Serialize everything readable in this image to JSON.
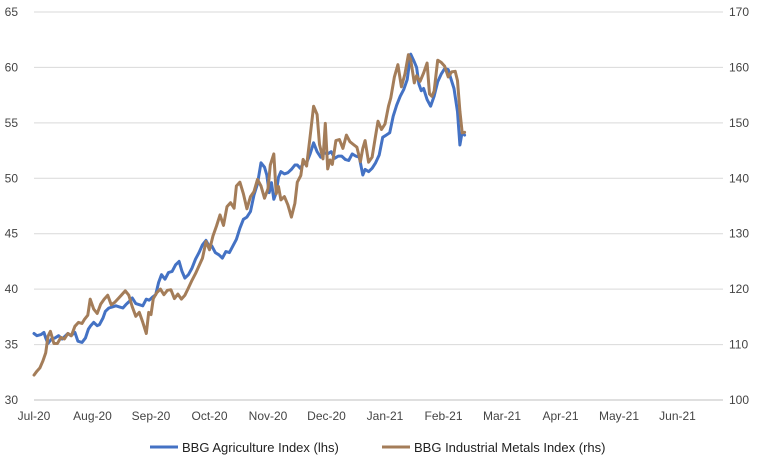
{
  "chart_data": {
    "type": "line",
    "x_labels": [
      "Jul-20",
      "Aug-20",
      "Sep-20",
      "Oct-20",
      "Nov-20",
      "Dec-20",
      "Jan-21",
      "Feb-21",
      "Mar-21",
      "Apr-21",
      "May-21",
      "Jun-21"
    ],
    "y_left": {
      "lim": [
        30,
        65
      ],
      "ticks": [
        30,
        35,
        40,
        45,
        50,
        55,
        60,
        65
      ]
    },
    "y_right": {
      "lim": [
        100,
        170
      ],
      "ticks": [
        100,
        110,
        120,
        130,
        140,
        150,
        160,
        170
      ]
    },
    "grid": true,
    "legend_position": "bottom",
    "series": [
      {
        "name": "BBG Agriculture Index (lhs)",
        "axis": "left",
        "color": "#4472c4",
        "points": [
          [
            0,
            36.0
          ],
          [
            0.05,
            35.8
          ],
          [
            0.12,
            35.9
          ],
          [
            0.17,
            36.1
          ],
          [
            0.2,
            35.6
          ],
          [
            0.24,
            35.1
          ],
          [
            0.3,
            35.5
          ],
          [
            0.36,
            35.6
          ],
          [
            0.42,
            35.8
          ],
          [
            0.48,
            35.5
          ],
          [
            0.52,
            35.7
          ],
          [
            0.58,
            36.0
          ],
          [
            0.63,
            35.8
          ],
          [
            0.7,
            36.1
          ],
          [
            0.75,
            35.3
          ],
          [
            0.82,
            35.2
          ],
          [
            0.88,
            35.6
          ],
          [
            0.93,
            36.4
          ],
          [
            0.97,
            36.7
          ],
          [
            1.02,
            37.0
          ],
          [
            1.08,
            36.7
          ],
          [
            1.12,
            36.8
          ],
          [
            1.18,
            37.4
          ],
          [
            1.22,
            38.0
          ],
          [
            1.28,
            38.3
          ],
          [
            1.34,
            38.4
          ],
          [
            1.4,
            38.5
          ],
          [
            1.46,
            38.4
          ],
          [
            1.52,
            38.3
          ],
          [
            1.57,
            38.6
          ],
          [
            1.63,
            38.9
          ],
          [
            1.68,
            39.2
          ],
          [
            1.74,
            38.7
          ],
          [
            1.8,
            38.6
          ],
          [
            1.86,
            38.5
          ],
          [
            1.92,
            39.1
          ],
          [
            1.97,
            39.0
          ],
          [
            2.03,
            39.3
          ],
          [
            2.08,
            39.5
          ],
          [
            2.13,
            40.6
          ],
          [
            2.18,
            41.3
          ],
          [
            2.24,
            40.9
          ],
          [
            2.3,
            41.5
          ],
          [
            2.36,
            41.6
          ],
          [
            2.42,
            42.2
          ],
          [
            2.48,
            42.5
          ],
          [
            2.53,
            41.6
          ],
          [
            2.58,
            41.0
          ],
          [
            2.64,
            41.3
          ],
          [
            2.7,
            41.9
          ],
          [
            2.76,
            42.7
          ],
          [
            2.82,
            43.3
          ],
          [
            2.88,
            44.0
          ],
          [
            2.94,
            44.4
          ],
          [
            3.0,
            43.8
          ],
          [
            3.04,
            43.9
          ],
          [
            3.1,
            43.3
          ],
          [
            3.16,
            43.1
          ],
          [
            3.22,
            42.8
          ],
          [
            3.28,
            43.4
          ],
          [
            3.34,
            43.3
          ],
          [
            3.4,
            43.9
          ],
          [
            3.46,
            44.5
          ],
          [
            3.52,
            45.5
          ],
          [
            3.58,
            46.3
          ],
          [
            3.64,
            46.5
          ],
          [
            3.7,
            47.0
          ],
          [
            3.76,
            48.5
          ],
          [
            3.82,
            49.5
          ],
          [
            3.88,
            51.4
          ],
          [
            3.94,
            51.0
          ],
          [
            3.98,
            50.3
          ],
          [
            4.02,
            48.7
          ],
          [
            4.06,
            49.6
          ],
          [
            4.1,
            48.1
          ],
          [
            4.14,
            48.7
          ],
          [
            4.18,
            50.1
          ],
          [
            4.22,
            50.6
          ],
          [
            4.28,
            50.4
          ],
          [
            4.34,
            50.5
          ],
          [
            4.4,
            50.8
          ],
          [
            4.46,
            51.2
          ],
          [
            4.5,
            51.2
          ],
          [
            4.55,
            50.9
          ],
          [
            4.6,
            51.3
          ],
          [
            4.66,
            51.4
          ],
          [
            4.72,
            52.2
          ],
          [
            4.78,
            53.2
          ],
          [
            4.84,
            52.4
          ],
          [
            4.9,
            51.9
          ],
          [
            4.96,
            52.3
          ],
          [
            5.02,
            52.2
          ],
          [
            5.08,
            52.4
          ],
          [
            5.14,
            51.8
          ],
          [
            5.2,
            52.0
          ],
          [
            5.26,
            52.0
          ],
          [
            5.32,
            51.7
          ],
          [
            5.38,
            51.6
          ],
          [
            5.44,
            52.2
          ],
          [
            5.5,
            52.0
          ],
          [
            5.56,
            51.9
          ],
          [
            5.62,
            50.3
          ],
          [
            5.66,
            50.8
          ],
          [
            5.72,
            50.6
          ],
          [
            5.78,
            50.9
          ],
          [
            5.84,
            51.4
          ],
          [
            5.9,
            52.1
          ],
          [
            5.96,
            53.7
          ],
          [
            6.02,
            53.9
          ],
          [
            6.08,
            54.1
          ],
          [
            6.14,
            55.6
          ],
          [
            6.2,
            56.6
          ],
          [
            6.26,
            57.4
          ],
          [
            6.32,
            58.0
          ],
          [
            6.38,
            58.9
          ],
          [
            6.44,
            61.2
          ],
          [
            6.5,
            60.5
          ],
          [
            6.54,
            60.0
          ],
          [
            6.58,
            58.5
          ],
          [
            6.62,
            57.9
          ],
          [
            6.66,
            58.1
          ],
          [
            6.72,
            57.1
          ],
          [
            6.78,
            56.5
          ],
          [
            6.84,
            57.4
          ],
          [
            6.9,
            58.7
          ],
          [
            6.96,
            59.4
          ],
          [
            7.02,
            59.9
          ],
          [
            7.08,
            59.8
          ],
          [
            7.12,
            59.1
          ],
          [
            7.18,
            58.1
          ],
          [
            7.24,
            56.0
          ],
          [
            7.28,
            53.0
          ],
          [
            7.32,
            54.2
          ],
          [
            7.36,
            53.9
          ]
        ]
      },
      {
        "name": "BBG Industrial Metals Index (rhs)",
        "axis": "right",
        "color": "#a47d59",
        "points": [
          [
            0,
            104.5
          ],
          [
            0.05,
            105.2
          ],
          [
            0.1,
            105.8
          ],
          [
            0.15,
            107.0
          ],
          [
            0.2,
            108.5
          ],
          [
            0.24,
            111.5
          ],
          [
            0.28,
            112.4
          ],
          [
            0.34,
            110.2
          ],
          [
            0.4,
            110.2
          ],
          [
            0.46,
            111.3
          ],
          [
            0.52,
            111.0
          ],
          [
            0.58,
            112.0
          ],
          [
            0.64,
            111.6
          ],
          [
            0.7,
            113.3
          ],
          [
            0.76,
            114.0
          ],
          [
            0.82,
            113.8
          ],
          [
            0.86,
            114.5
          ],
          [
            0.92,
            115.3
          ],
          [
            0.96,
            118.2
          ],
          [
            1.02,
            116.4
          ],
          [
            1.08,
            115.6
          ],
          [
            1.14,
            117.3
          ],
          [
            1.2,
            118.2
          ],
          [
            1.26,
            118.9
          ],
          [
            1.32,
            117.2
          ],
          [
            1.38,
            117.6
          ],
          [
            1.44,
            118.3
          ],
          [
            1.5,
            119.0
          ],
          [
            1.56,
            119.7
          ],
          [
            1.62,
            118.9
          ],
          [
            1.68,
            116.8
          ],
          [
            1.74,
            115.1
          ],
          [
            1.8,
            115.8
          ],
          [
            1.86,
            114.0
          ],
          [
            1.92,
            112.0
          ],
          [
            1.96,
            115.8
          ],
          [
            2.0,
            115.4
          ],
          [
            2.04,
            118.3
          ],
          [
            2.1,
            119.4
          ],
          [
            2.16,
            120.0
          ],
          [
            2.22,
            119.0
          ],
          [
            2.28,
            119.8
          ],
          [
            2.34,
            119.9
          ],
          [
            2.4,
            118.3
          ],
          [
            2.46,
            119.1
          ],
          [
            2.52,
            118.2
          ],
          [
            2.58,
            118.9
          ],
          [
            2.64,
            120.2
          ],
          [
            2.7,
            121.6
          ],
          [
            2.76,
            122.8
          ],
          [
            2.82,
            124.2
          ],
          [
            2.88,
            125.6
          ],
          [
            2.94,
            128.6
          ],
          [
            3.0,
            127.1
          ],
          [
            3.06,
            129.6
          ],
          [
            3.12,
            131.4
          ],
          [
            3.18,
            133.4
          ],
          [
            3.24,
            131.5
          ],
          [
            3.3,
            134.9
          ],
          [
            3.36,
            135.6
          ],
          [
            3.42,
            134.6
          ],
          [
            3.46,
            138.6
          ],
          [
            3.52,
            139.3
          ],
          [
            3.58,
            137.2
          ],
          [
            3.64,
            134.5
          ],
          [
            3.7,
            136.7
          ],
          [
            3.76,
            137.6
          ],
          [
            3.82,
            139.8
          ],
          [
            3.88,
            138.6
          ],
          [
            3.94,
            136.4
          ],
          [
            4.0,
            138.1
          ],
          [
            4.04,
            142.4
          ],
          [
            4.1,
            144.4
          ],
          [
            4.14,
            137.2
          ],
          [
            4.18,
            138.5
          ],
          [
            4.22,
            136.1
          ],
          [
            4.28,
            136.7
          ],
          [
            4.34,
            135.2
          ],
          [
            4.4,
            133.0
          ],
          [
            4.46,
            135.5
          ],
          [
            4.5,
            139.3
          ],
          [
            4.56,
            140.5
          ],
          [
            4.6,
            143.4
          ],
          [
            4.66,
            142.2
          ],
          [
            4.72,
            147.5
          ],
          [
            4.78,
            153.0
          ],
          [
            4.84,
            151.5
          ],
          [
            4.88,
            146.1
          ],
          [
            4.94,
            143.5
          ],
          [
            4.98,
            149.9
          ],
          [
            5.02,
            141.7
          ],
          [
            5.06,
            143.3
          ],
          [
            5.1,
            142.5
          ],
          [
            5.16,
            146.8
          ],
          [
            5.22,
            147.0
          ],
          [
            5.28,
            145.4
          ],
          [
            5.34,
            147.8
          ],
          [
            5.4,
            146.6
          ],
          [
            5.46,
            146.1
          ],
          [
            5.52,
            145.6
          ],
          [
            5.58,
            143.0
          ],
          [
            5.62,
            145.4
          ],
          [
            5.66,
            146.8
          ],
          [
            5.72,
            142.9
          ],
          [
            5.78,
            143.8
          ],
          [
            5.84,
            147.7
          ],
          [
            5.88,
            150.3
          ],
          [
            5.94,
            148.8
          ],
          [
            6.0,
            149.8
          ],
          [
            6.06,
            153.0
          ],
          [
            6.1,
            154.5
          ],
          [
            6.16,
            158.3
          ],
          [
            6.22,
            160.5
          ],
          [
            6.28,
            156.5
          ],
          [
            6.34,
            158.8
          ],
          [
            6.4,
            162.3
          ],
          [
            6.44,
            161.4
          ],
          [
            6.5,
            157.2
          ],
          [
            6.54,
            158.5
          ],
          [
            6.6,
            157.5
          ],
          [
            6.66,
            159.0
          ],
          [
            6.72,
            160.8
          ],
          [
            6.76,
            155.2
          ],
          [
            6.8,
            154.8
          ],
          [
            6.84,
            155.7
          ],
          [
            6.9,
            161.3
          ],
          [
            6.96,
            160.9
          ],
          [
            7.02,
            160.2
          ],
          [
            7.08,
            158.3
          ],
          [
            7.14,
            159.2
          ],
          [
            7.2,
            159.3
          ],
          [
            7.24,
            157.6
          ],
          [
            7.28,
            152.1
          ],
          [
            7.32,
            148.2
          ],
          [
            7.36,
            148.3
          ]
        ]
      }
    ]
  }
}
